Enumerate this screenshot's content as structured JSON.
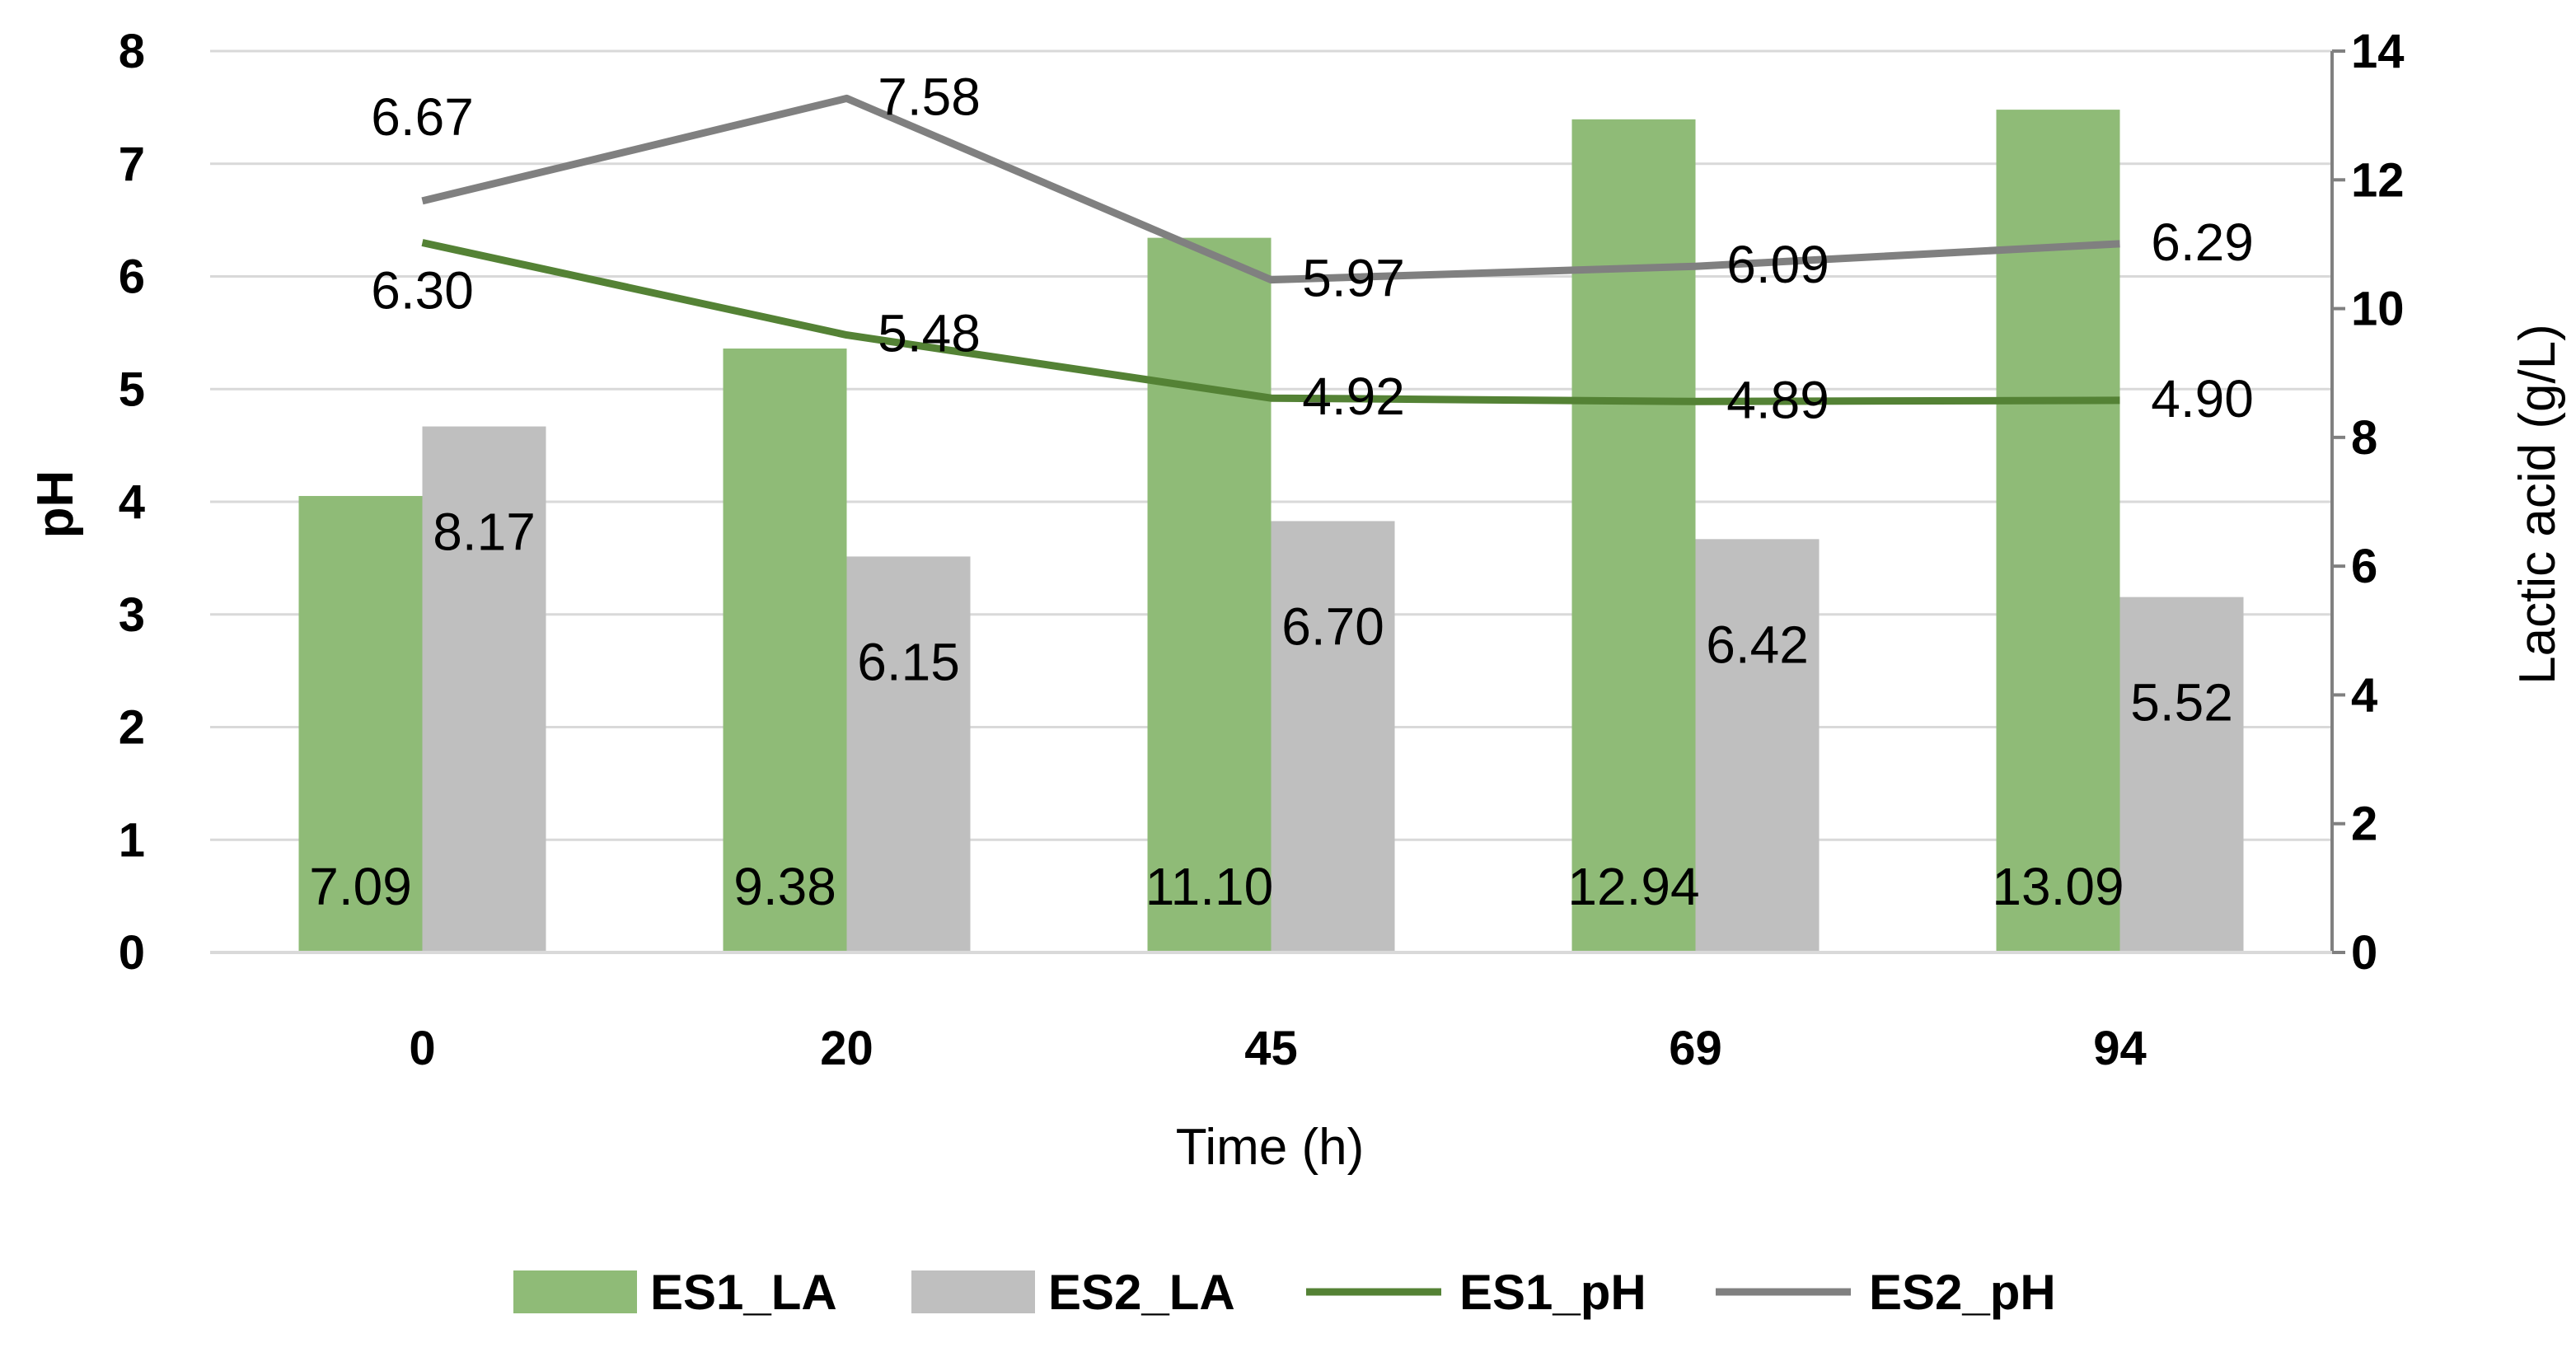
{
  "chart_data": {
    "type": "bar+line",
    "categories": [
      "0",
      "20",
      "45",
      "69",
      "94"
    ],
    "xlabel": "Time (h)",
    "ylabel_left": "pH",
    "ylabel_right": "Lactic acid (g/L)",
    "ylim_left": [
      0,
      8
    ],
    "ylim_right": [
      0,
      14
    ],
    "yticks_left": [
      "0",
      "1",
      "2",
      "3",
      "4",
      "5",
      "6",
      "7",
      "8"
    ],
    "yticks_right": [
      "0",
      "2",
      "4",
      "6",
      "8",
      "10",
      "12",
      "14"
    ],
    "grid": true,
    "legend_position": "bottom",
    "bar_series": [
      {
        "name": "ES1_LA",
        "axis": "right",
        "color": "#8fbb77",
        "values": [
          7.09,
          9.38,
          11.1,
          12.94,
          13.09
        ],
        "labels": [
          "7.09",
          "9.38",
          "11.10",
          "12.94",
          "13.09"
        ]
      },
      {
        "name": "ES2_LA",
        "axis": "right",
        "color": "#bfbfbf",
        "values": [
          8.17,
          6.15,
          6.7,
          6.42,
          5.52
        ],
        "labels": [
          "8.17",
          "6.15",
          "6.70",
          "6.42",
          "5.52"
        ]
      }
    ],
    "line_series": [
      {
        "name": "ES1_pH",
        "axis": "left",
        "color": "#548235",
        "values": [
          6.3,
          5.48,
          4.92,
          4.89,
          4.9
        ],
        "labels": [
          "6.30",
          "5.48",
          "4.92",
          "4.89",
          "4.90"
        ]
      },
      {
        "name": "ES2_pH",
        "axis": "left",
        "color": "#808080",
        "values": [
          6.67,
          7.58,
          5.97,
          6.09,
          6.29
        ],
        "labels": [
          "6.67",
          "7.58",
          "5.97",
          "6.09",
          "6.29"
        ]
      }
    ],
    "legend": [
      "ES1_LA",
      "ES2_LA",
      "ES1_pH",
      "ES2_pH"
    ]
  }
}
